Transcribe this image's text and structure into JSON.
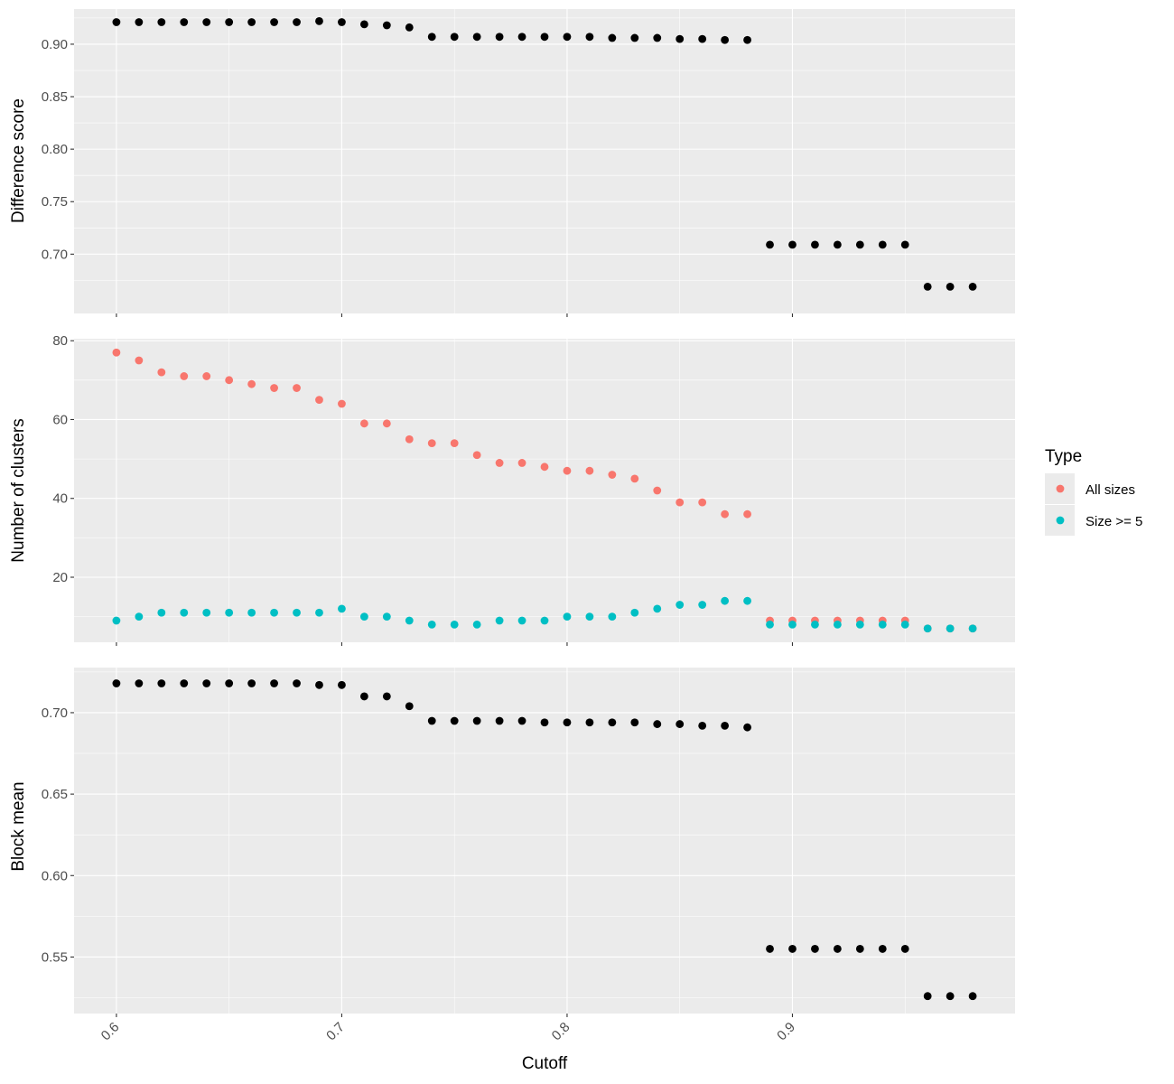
{
  "chart_data": [
    {
      "type": "scatter",
      "ylabel": "Difference score",
      "xlim": [
        0.5812,
        0.9988
      ],
      "ylim": [
        0.6435,
        0.9335
      ],
      "yticks": [
        "0.90",
        "0.85",
        "0.80",
        "0.75",
        "0.70"
      ],
      "series": [
        {
          "color": "#000000",
          "x": [
            0.6,
            0.61,
            0.62,
            0.63,
            0.64,
            0.65,
            0.66,
            0.67,
            0.68,
            0.69,
            0.7,
            0.71,
            0.72,
            0.73,
            0.74,
            0.75,
            0.76,
            0.77,
            0.78,
            0.79,
            0.8,
            0.81,
            0.82,
            0.83,
            0.84,
            0.85,
            0.86,
            0.87,
            0.88,
            0.89,
            0.9,
            0.91,
            0.92,
            0.93,
            0.94,
            0.95,
            0.96,
            0.97,
            0.98
          ],
          "y": [
            0.921,
            0.921,
            0.921,
            0.921,
            0.921,
            0.921,
            0.921,
            0.921,
            0.921,
            0.922,
            0.921,
            0.919,
            0.918,
            0.916,
            0.907,
            0.907,
            0.907,
            0.907,
            0.907,
            0.907,
            0.907,
            0.907,
            0.906,
            0.906,
            0.906,
            0.905,
            0.905,
            0.904,
            0.904,
            0.709,
            0.709,
            0.709,
            0.709,
            0.709,
            0.709,
            0.709,
            0.669,
            0.669,
            0.669
          ]
        }
      ]
    },
    {
      "type": "scatter",
      "ylabel": "Number of clusters",
      "xlim": [
        0.5812,
        0.9988
      ],
      "ylim": [
        3.5,
        80.5
      ],
      "yticks": [
        "80",
        "60",
        "40",
        "20"
      ],
      "series": [
        {
          "name": "All sizes",
          "color": "#F8766D",
          "x": [
            0.6,
            0.61,
            0.62,
            0.63,
            0.64,
            0.65,
            0.66,
            0.67,
            0.68,
            0.69,
            0.7,
            0.71,
            0.72,
            0.73,
            0.74,
            0.75,
            0.76,
            0.77,
            0.78,
            0.79,
            0.8,
            0.81,
            0.82,
            0.83,
            0.84,
            0.85,
            0.86,
            0.87,
            0.88,
            0.89,
            0.9,
            0.91,
            0.92,
            0.93,
            0.94,
            0.95,
            0.96,
            0.97,
            0.98
          ],
          "y": [
            77,
            75,
            72,
            71,
            71,
            70,
            69,
            68,
            68,
            65,
            64,
            59,
            59,
            55,
            54,
            54,
            51,
            49,
            49,
            48,
            47,
            47,
            46,
            45,
            42,
            39,
            39,
            36,
            36,
            9,
            9,
            9,
            9,
            9,
            9,
            9,
            7,
            7,
            7
          ]
        },
        {
          "name": "Size >= 5",
          "color": "#00BFC4",
          "x": [
            0.6,
            0.61,
            0.62,
            0.63,
            0.64,
            0.65,
            0.66,
            0.67,
            0.68,
            0.69,
            0.7,
            0.71,
            0.72,
            0.73,
            0.74,
            0.75,
            0.76,
            0.77,
            0.78,
            0.79,
            0.8,
            0.81,
            0.82,
            0.83,
            0.84,
            0.85,
            0.86,
            0.87,
            0.88,
            0.89,
            0.9,
            0.91,
            0.92,
            0.93,
            0.94,
            0.95,
            0.96,
            0.97,
            0.98
          ],
          "y": [
            9,
            10,
            11,
            11,
            11,
            11,
            11,
            11,
            11,
            11,
            12,
            10,
            10,
            9,
            8,
            8,
            8,
            9,
            9,
            9,
            10,
            10,
            10,
            11,
            12,
            13,
            13,
            14,
            14,
            8,
            8,
            8,
            8,
            8,
            8,
            8,
            7,
            7,
            7
          ]
        }
      ]
    },
    {
      "type": "scatter",
      "ylabel": "Block mean",
      "xlabel": "Cutoff",
      "xlim": [
        0.5812,
        0.9988
      ],
      "ylim": [
        0.5153,
        0.7277
      ],
      "yticks": [
        "0.70",
        "0.65",
        "0.60",
        "0.55"
      ],
      "xticks": [
        "0.6",
        "0.7",
        "0.8",
        "0.9"
      ],
      "series": [
        {
          "color": "#000000",
          "x": [
            0.6,
            0.61,
            0.62,
            0.63,
            0.64,
            0.65,
            0.66,
            0.67,
            0.68,
            0.69,
            0.7,
            0.71,
            0.72,
            0.73,
            0.74,
            0.75,
            0.76,
            0.77,
            0.78,
            0.79,
            0.8,
            0.81,
            0.82,
            0.83,
            0.84,
            0.85,
            0.86,
            0.87,
            0.88,
            0.89,
            0.9,
            0.91,
            0.92,
            0.93,
            0.94,
            0.95,
            0.96,
            0.97,
            0.98
          ],
          "y": [
            0.718,
            0.718,
            0.718,
            0.718,
            0.718,
            0.718,
            0.718,
            0.718,
            0.718,
            0.717,
            0.717,
            0.71,
            0.71,
            0.704,
            0.695,
            0.695,
            0.695,
            0.695,
            0.695,
            0.694,
            0.694,
            0.694,
            0.694,
            0.694,
            0.693,
            0.693,
            0.692,
            0.692,
            0.691,
            0.555,
            0.555,
            0.555,
            0.555,
            0.555,
            0.555,
            0.555,
            0.526,
            0.526,
            0.526
          ]
        }
      ]
    }
  ],
  "legend": {
    "title": "Type",
    "placement": "right",
    "items": [
      {
        "label": "All sizes",
        "color": "#F8766D"
      },
      {
        "label": "Size >= 5",
        "color": "#00BFC4"
      }
    ]
  },
  "colors": {
    "panel_background": "#EBEBEB",
    "grid": "#FFFFFF",
    "axis_text": "#4D4D4D",
    "tick_mark": "#333333"
  }
}
